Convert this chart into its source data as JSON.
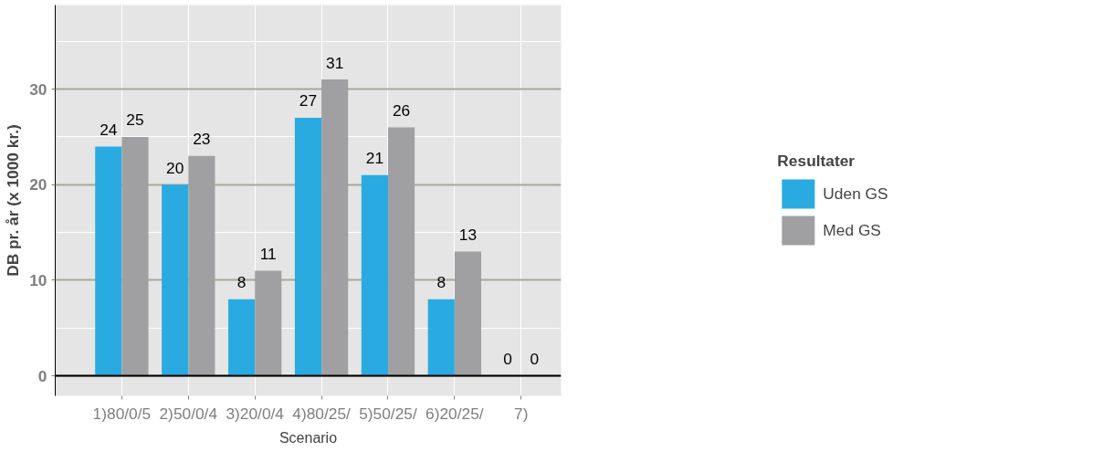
{
  "chart_data": {
    "type": "bar",
    "xlabel": "Scenario",
    "ylabel": "DB pr. år (x 1000 kr.)",
    "legend_title": "Resultater",
    "categories": [
      "1)80/0/5",
      "2)50/0/4",
      "3)20/0/4",
      "4)80/25/",
      "5)50/25/",
      "6)20/25/",
      "7)"
    ],
    "series": [
      {
        "name": "Uden GS",
        "color": "#29abe2",
        "values": [
          24,
          20,
          8,
          27,
          21,
          8,
          0
        ]
      },
      {
        "name": "Med GS",
        "color": "#a0a0a2",
        "values": [
          25,
          23,
          11,
          31,
          26,
          13,
          0
        ]
      }
    ],
    "ylim": [
      -2.1,
      38.8
    ],
    "yticks": [
      0,
      10,
      20,
      30
    ],
    "grid": true,
    "legend": "right",
    "data_labels": true
  }
}
